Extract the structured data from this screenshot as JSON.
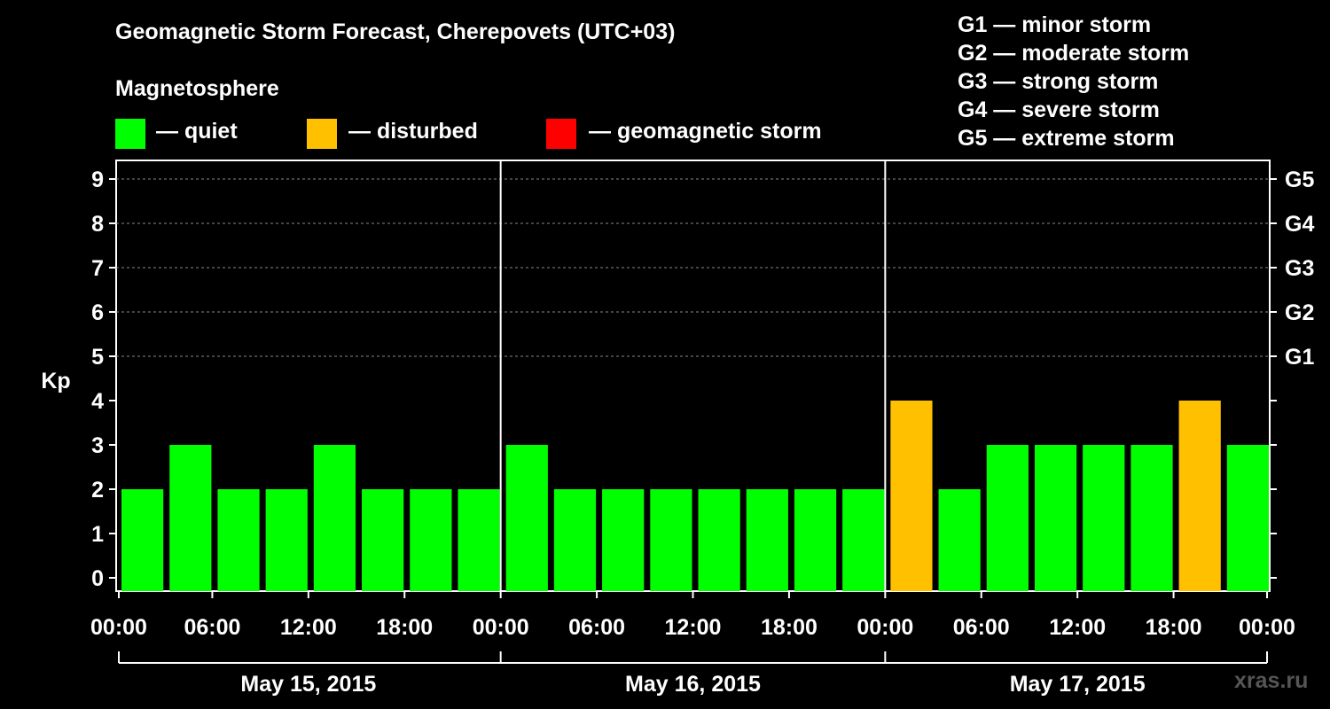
{
  "chart_data": {
    "type": "bar",
    "title": "Geomagnetic Storm Forecast, Cherepovets (UTC+03)",
    "subtitle": "Magnetosphere",
    "ylabel": "Kp",
    "ylim": [
      0,
      9
    ],
    "y_ticks": [
      "0",
      "1",
      "2",
      "3",
      "4",
      "5",
      "6",
      "7",
      "8",
      "9"
    ],
    "right_ticks": [
      {
        "kp": 5,
        "label": "G1"
      },
      {
        "kp": 6,
        "label": "G2"
      },
      {
        "kp": 7,
        "label": "G3"
      },
      {
        "kp": 8,
        "label": "G4"
      },
      {
        "kp": 9,
        "label": "G5"
      }
    ],
    "x_tick_labels": [
      "00:00",
      "06:00",
      "12:00",
      "18:00",
      "00:00",
      "06:00",
      "12:00",
      "18:00",
      "00:00",
      "06:00",
      "12:00",
      "18:00",
      "00:00"
    ],
    "days": [
      "May 15, 2015",
      "May 16, 2015",
      "May 17, 2015"
    ],
    "values": [
      2,
      3,
      2,
      2,
      3,
      2,
      2,
      2,
      3,
      2,
      2,
      2,
      2,
      2,
      2,
      2,
      4,
      2,
      3,
      3,
      3,
      3,
      4,
      3
    ],
    "status_colors": {
      "quiet": "#00ff00",
      "disturbed": "#ffc000",
      "storm": "#ff0000"
    },
    "gridlines": "dashed at Kp 5-9",
    "legend": [
      {
        "label": "— quiet",
        "color": "#00ff00"
      },
      {
        "label": "— disturbed",
        "color": "#ffc000"
      },
      {
        "label": "— geomagnetic storm",
        "color": "#ff0000"
      }
    ],
    "storm_scale": [
      "G1 — minor storm",
      "G2 — moderate storm",
      "G3 — strong storm",
      "G4 — severe storm",
      "G5 — extreme storm"
    ]
  },
  "watermark": "xras.ru"
}
